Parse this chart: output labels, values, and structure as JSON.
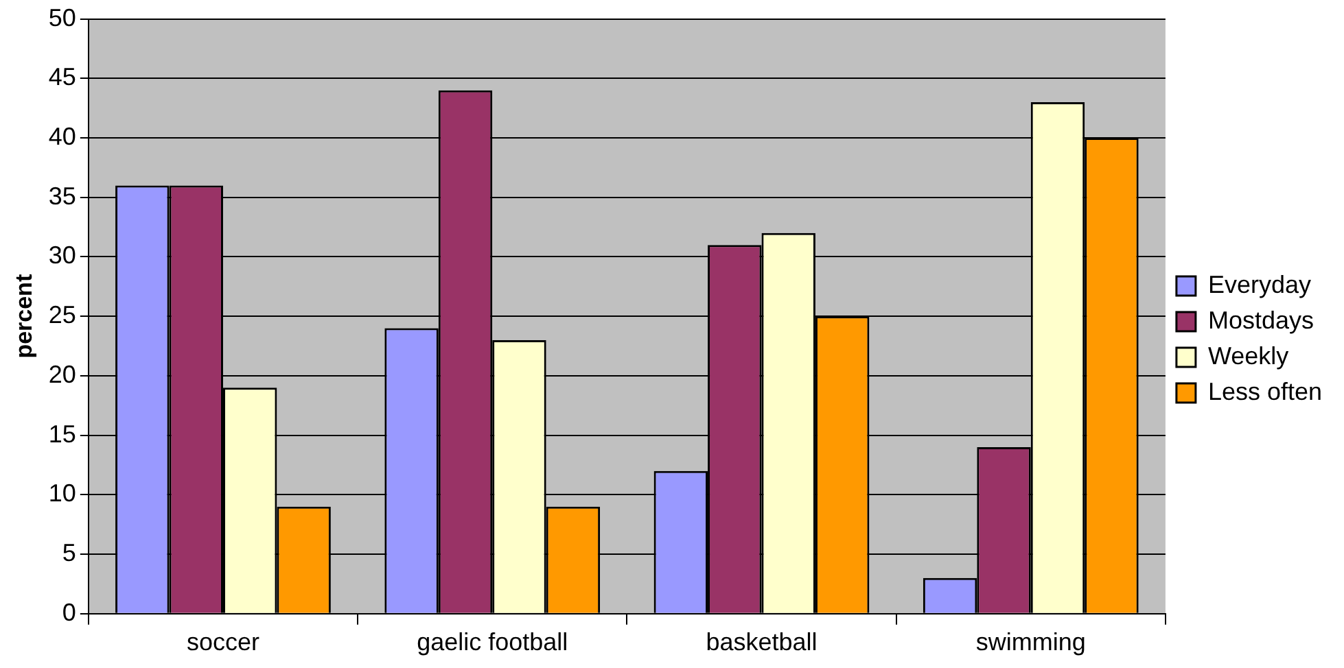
{
  "chart_data": {
    "type": "bar",
    "ylabel": "percent",
    "categories": [
      "soccer",
      "gaelic football",
      "basketball",
      "swimming"
    ],
    "series": [
      {
        "name": "Everyday",
        "color": "#9999ff",
        "values": [
          36,
          24,
          12,
          3
        ]
      },
      {
        "name": "Mostdays",
        "color": "#993366",
        "values": [
          36,
          44,
          31,
          14
        ]
      },
      {
        "name": "Weekly",
        "color": "#ffffcc",
        "values": [
          19,
          23,
          32,
          43
        ]
      },
      {
        "name": "Less often",
        "color": "#ff9900",
        "values": [
          9,
          9,
          25,
          40
        ]
      }
    ],
    "ylim": [
      0,
      50
    ],
    "yticks": [
      0,
      5,
      10,
      15,
      20,
      25,
      30,
      35,
      40,
      45,
      50
    ],
    "grid": "y",
    "legend": "right"
  }
}
